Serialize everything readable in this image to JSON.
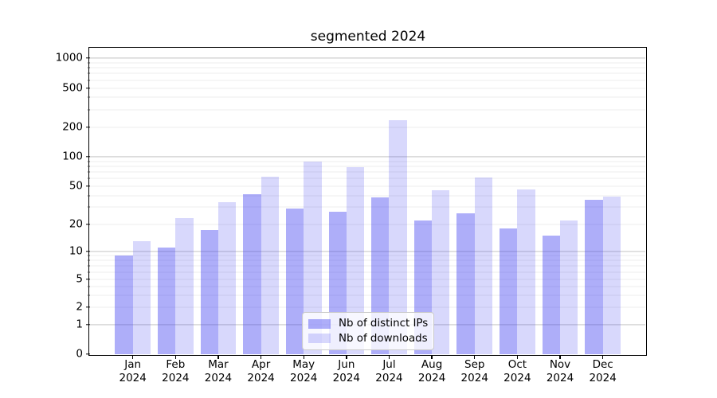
{
  "title": "segmented 2024",
  "colors": {
    "series": [
      "rgba(62,62,240,0.42)",
      "rgba(62,62,240,0.20)"
    ],
    "grid_major": "#c3c3c3",
    "grid_minor": "#ececec"
  },
  "chart_data": {
    "type": "bar",
    "title": "segmented 2024",
    "categories": [
      "Jan 2024",
      "Feb 2024",
      "Mar 2024",
      "Apr 2024",
      "May 2024",
      "Jun 2024",
      "Jul 2024",
      "Aug 2024",
      "Sep 2024",
      "Oct 2024",
      "Nov 2024",
      "Dec 2024"
    ],
    "series": [
      {
        "name": "Nb of distinct IPs",
        "values": [
          9,
          11,
          17,
          41,
          29,
          27,
          38,
          22,
          26,
          18,
          15,
          36
        ]
      },
      {
        "name": "Nb of downloads",
        "values": [
          13,
          23,
          34,
          63,
          90,
          78,
          235,
          45,
          62,
          46,
          22,
          39
        ]
      }
    ],
    "xlabel": "",
    "ylabel": "",
    "yscale": "symlog (log above 1, linear 0-1)",
    "yticks": [
      0,
      1,
      2,
      5,
      10,
      20,
      50,
      100,
      200,
      500,
      1000
    ],
    "ylim": [
      0,
      1250
    ],
    "grid": "horizontal major+minor",
    "legend_position": "lower center"
  }
}
